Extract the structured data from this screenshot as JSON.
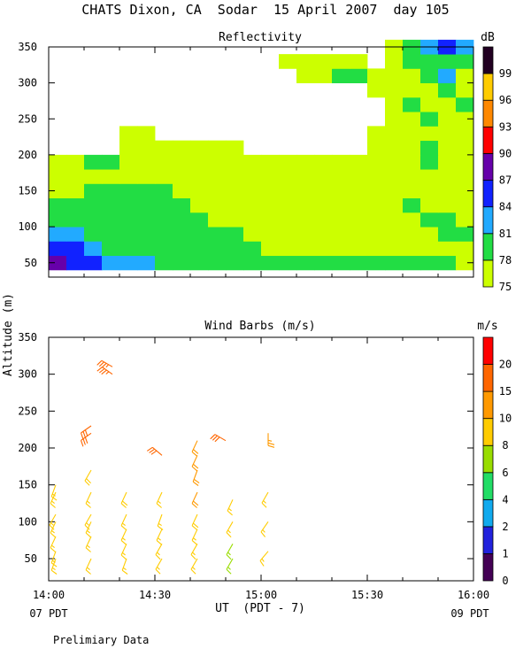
{
  "title": "CHATS Dixon, CA  Sodar  15 April 2007  day 105",
  "footer": {
    "xlabel": "UT  (PDT - 7)",
    "left_local": "07 PDT",
    "right_local": "09 PDT",
    "note": "Prelimiary Data"
  },
  "ylabel": "Altitude (m)",
  "colors": {
    "reflectivity_scale": [
      "#ccff00",
      "#22dd44",
      "#22aaff",
      "#1122ff",
      "#6600aa",
      "#ff0000",
      "#ff8800",
      "#ffcc00",
      "#220022"
    ],
    "wind_scale": [
      "#440055",
      "#2222dd",
      "#11aaee",
      "#22dd66",
      "#99dd00",
      "#ffcc00",
      "#ff9900",
      "#ff6600",
      "#ff0000"
    ]
  },
  "chart_data": [
    {
      "type": "heatmap",
      "title": "Reflectivity",
      "unit": "dB",
      "legend_levels": [
        "75",
        "78",
        "81",
        "84",
        "87",
        "90",
        "93",
        "96",
        "99"
      ],
      "x_ticks": [
        "14:00",
        "14:30",
        "15:00",
        "15:30",
        "16:00"
      ],
      "xlim": [
        "14:00",
        "16:00"
      ],
      "y_ticks": [
        50,
        100,
        150,
        200,
        250,
        300,
        350
      ],
      "ylim": [
        30,
        350
      ],
      "time_step_min": 5,
      "altitude_step_m": 20,
      "altitudes": [
        40,
        60,
        80,
        100,
        120,
        140,
        160,
        180,
        200,
        220,
        240,
        260,
        280,
        300,
        320,
        340
      ],
      "grid": [
        [
          4,
          3,
          3,
          2,
          2,
          2,
          1,
          1,
          1,
          1,
          1,
          1,
          1,
          1,
          1,
          1,
          1,
          1,
          1,
          1,
          1,
          1,
          1,
          0
        ],
        [
          3,
          3,
          2,
          1,
          1,
          1,
          1,
          1,
          1,
          1,
          1,
          1,
          0,
          0,
          0,
          0,
          0,
          0,
          0,
          0,
          0,
          0,
          0,
          0
        ],
        [
          2,
          2,
          1,
          1,
          1,
          1,
          1,
          1,
          1,
          1,
          1,
          0,
          0,
          0,
          0,
          0,
          0,
          0,
          0,
          0,
          0,
          0,
          1,
          1
        ],
        [
          1,
          1,
          1,
          1,
          1,
          1,
          1,
          1,
          1,
          0,
          0,
          0,
          0,
          0,
          0,
          0,
          0,
          0,
          0,
          0,
          0,
          1,
          1,
          0
        ],
        [
          1,
          1,
          1,
          1,
          1,
          1,
          1,
          1,
          0,
          0,
          0,
          0,
          0,
          0,
          0,
          0,
          0,
          0,
          0,
          0,
          1,
          0,
          0,
          0
        ],
        [
          0,
          0,
          1,
          1,
          1,
          1,
          1,
          0,
          0,
          0,
          0,
          0,
          0,
          0,
          0,
          0,
          0,
          0,
          0,
          0,
          0,
          0,
          0,
          0
        ],
        [
          0,
          0,
          0,
          0,
          0,
          0,
          0,
          0,
          0,
          0,
          0,
          0,
          0,
          0,
          0,
          0,
          0,
          0,
          0,
          0,
          0,
          0,
          0,
          0
        ],
        [
          0,
          0,
          1,
          1,
          0,
          0,
          0,
          0,
          0,
          0,
          0,
          0,
          0,
          0,
          0,
          0,
          0,
          0,
          0,
          0,
          0,
          1,
          0,
          0
        ],
        [
          -1,
          -1,
          -1,
          -1,
          0,
          0,
          0,
          0,
          0,
          0,
          0,
          -1,
          -1,
          -1,
          -1,
          -1,
          -1,
          -1,
          0,
          0,
          0,
          1,
          0,
          0
        ],
        [
          -1,
          -1,
          -1,
          -1,
          0,
          0,
          -1,
          -1,
          -1,
          -1,
          -1,
          -1,
          -1,
          -1,
          -1,
          -1,
          -1,
          -1,
          0,
          0,
          0,
          0,
          0,
          0
        ],
        [
          -1,
          -1,
          -1,
          -1,
          -1,
          -1,
          -1,
          -1,
          -1,
          -1,
          -1,
          -1,
          -1,
          -1,
          -1,
          -1,
          -1,
          -1,
          -1,
          0,
          0,
          1,
          0,
          0
        ],
        [
          -1,
          -1,
          -1,
          -1,
          -1,
          -1,
          -1,
          -1,
          -1,
          -1,
          -1,
          -1,
          -1,
          -1,
          -1,
          -1,
          -1,
          -1,
          -1,
          0,
          1,
          0,
          0,
          1
        ],
        [
          -1,
          -1,
          -1,
          -1,
          -1,
          -1,
          -1,
          -1,
          -1,
          -1,
          -1,
          -1,
          -1,
          -1,
          -1,
          -1,
          -1,
          -1,
          0,
          0,
          0,
          0,
          1,
          0
        ],
        [
          -1,
          -1,
          -1,
          -1,
          -1,
          -1,
          -1,
          -1,
          -1,
          -1,
          -1,
          -1,
          -1,
          -1,
          0,
          0,
          1,
          1,
          0,
          0,
          0,
          1,
          2,
          0
        ],
        [
          -1,
          -1,
          -1,
          -1,
          -1,
          -1,
          -1,
          -1,
          -1,
          -1,
          -1,
          -1,
          -1,
          0,
          0,
          0,
          0,
          0,
          -1,
          0,
          1,
          1,
          1,
          1
        ],
        [
          -1,
          -1,
          -1,
          -1,
          -1,
          -1,
          -1,
          -1,
          -1,
          -1,
          -1,
          -1,
          -1,
          -1,
          -1,
          -1,
          -1,
          -1,
          -1,
          0,
          1,
          2,
          3,
          2
        ]
      ]
    },
    {
      "type": "scatter",
      "title": "Wind Barbs (m/s)",
      "unit": "m/s",
      "legend_levels": [
        "0",
        "1",
        "2",
        "4",
        "6",
        "8",
        "10",
        "15",
        "20"
      ],
      "x_ticks": [
        "14:00",
        "14:30",
        "15:00",
        "15:30",
        "16:00"
      ],
      "xlim": [
        "14:00",
        "16:00"
      ],
      "y_ticks": [
        50,
        100,
        150,
        200,
        250,
        300,
        350
      ],
      "ylim": [
        20,
        350
      ],
      "points": [
        {
          "t": "14:02",
          "z": 50,
          "spd": 8.5,
          "dir": 200
        },
        {
          "t": "14:02",
          "z": 60,
          "spd": 8.5,
          "dir": 200
        },
        {
          "t": "14:02",
          "z": 80,
          "spd": 8,
          "dir": 205
        },
        {
          "t": "14:02",
          "z": 100,
          "spd": 8.5,
          "dir": 205
        },
        {
          "t": "14:02",
          "z": 110,
          "spd": 8,
          "dir": 210
        },
        {
          "t": "14:02",
          "z": 140,
          "spd": 8,
          "dir": 205
        },
        {
          "t": "14:02",
          "z": 150,
          "spd": 8.5,
          "dir": 200
        },
        {
          "t": "14:12",
          "z": 50,
          "spd": 8,
          "dir": 205
        },
        {
          "t": "14:12",
          "z": 80,
          "spd": 8.5,
          "dir": 205
        },
        {
          "t": "14:12",
          "z": 100,
          "spd": 9,
          "dir": 205
        },
        {
          "t": "14:12",
          "z": 110,
          "spd": 9,
          "dir": 210
        },
        {
          "t": "14:12",
          "z": 140,
          "spd": 9,
          "dir": 205
        },
        {
          "t": "14:12",
          "z": 170,
          "spd": 9.5,
          "dir": 210
        },
        {
          "t": "14:12",
          "z": 220,
          "spd": 16,
          "dir": 235
        },
        {
          "t": "14:12",
          "z": 230,
          "spd": 16,
          "dir": 235
        },
        {
          "t": "14:18",
          "z": 300,
          "spd": 17,
          "dir": 305
        },
        {
          "t": "14:18",
          "z": 310,
          "spd": 17,
          "dir": 300
        },
        {
          "t": "14:22",
          "z": 50,
          "spd": 8,
          "dir": 200
        },
        {
          "t": "14:22",
          "z": 70,
          "spd": 8.5,
          "dir": 205
        },
        {
          "t": "14:22",
          "z": 90,
          "spd": 9,
          "dir": 205
        },
        {
          "t": "14:22",
          "z": 110,
          "spd": 9,
          "dir": 205
        },
        {
          "t": "14:22",
          "z": 140,
          "spd": 9.5,
          "dir": 205
        },
        {
          "t": "14:32",
          "z": 50,
          "spd": 8.5,
          "dir": 210
        },
        {
          "t": "14:32",
          "z": 70,
          "spd": 8.5,
          "dir": 210
        },
        {
          "t": "14:32",
          "z": 90,
          "spd": 9,
          "dir": 205
        },
        {
          "t": "14:32",
          "z": 110,
          "spd": 9,
          "dir": 200
        },
        {
          "t": "14:32",
          "z": 140,
          "spd": 9,
          "dir": 205
        },
        {
          "t": "14:32",
          "z": 190,
          "spd": 16,
          "dir": 310
        },
        {
          "t": "14:42",
          "z": 50,
          "spd": 8.5,
          "dir": 210
        },
        {
          "t": "14:42",
          "z": 70,
          "spd": 9,
          "dir": 210
        },
        {
          "t": "14:42",
          "z": 90,
          "spd": 9,
          "dir": 205
        },
        {
          "t": "14:42",
          "z": 110,
          "spd": 9.5,
          "dir": 205
        },
        {
          "t": "14:42",
          "z": 140,
          "spd": 10,
          "dir": 205
        },
        {
          "t": "14:42",
          "z": 170,
          "spd": 11,
          "dir": 200
        },
        {
          "t": "14:42",
          "z": 190,
          "spd": 11,
          "dir": 205
        },
        {
          "t": "14:42",
          "z": 210,
          "spd": 11,
          "dir": 205
        },
        {
          "t": "14:50",
          "z": 210,
          "spd": 16,
          "dir": 300
        },
        {
          "t": "14:52",
          "z": 50,
          "spd": 7.5,
          "dir": 210
        },
        {
          "t": "14:52",
          "z": 70,
          "spd": 7.5,
          "dir": 210
        },
        {
          "t": "14:52",
          "z": 100,
          "spd": 8,
          "dir": 210
        },
        {
          "t": "14:52",
          "z": 130,
          "spd": 8.5,
          "dir": 205
        },
        {
          "t": "15:02",
          "z": 60,
          "spd": 8.5,
          "dir": 220
        },
        {
          "t": "15:02",
          "z": 100,
          "spd": 8.5,
          "dir": 215
        },
        {
          "t": "15:02",
          "z": 140,
          "spd": 9,
          "dir": 210
        },
        {
          "t": "15:02",
          "z": 220,
          "spd": 13,
          "dir": 180
        }
      ]
    }
  ]
}
